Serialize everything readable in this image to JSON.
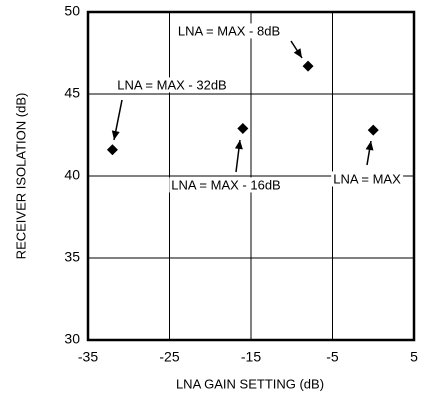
{
  "chart_data": {
    "type": "scatter",
    "x_label": "LNA GAIN SETTING (dB)",
    "y_label": "RECEIVER ISOLATION (dB)",
    "xlim": [
      -35,
      5
    ],
    "xticks": [
      -35,
      -25,
      -15,
      -5,
      5
    ],
    "ylim": [
      30,
      50
    ],
    "yticks": [
      30,
      35,
      40,
      45,
      50
    ],
    "grid": true,
    "color": "#000000",
    "x": [
      -32,
      -16,
      -8,
      0
    ],
    "values": [
      41.6,
      42.9,
      46.7,
      42.8
    ],
    "annotations": [
      "LNA = MAX - 32dB",
      "LNA = MAX - 16dB",
      "LNA = MAX - 8dB",
      "LNA = MAX"
    ]
  }
}
